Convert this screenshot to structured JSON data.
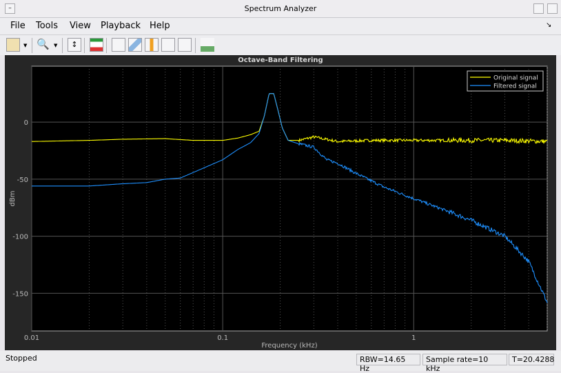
{
  "window": {
    "title": "Spectrum Analyzer"
  },
  "menu": [
    "File",
    "Tools",
    "View",
    "Playback",
    "Help"
  ],
  "toolbar": {
    "icons": [
      "settings-icon",
      "zoom-icon",
      "scale-axes-icon",
      "spectrum-settings-icon",
      "triggers-icon",
      "measurements-icon",
      "channel-measurements-icon",
      "distortion-icon",
      "spectral-mask-icon",
      "generate-script-icon"
    ]
  },
  "chart_data": {
    "type": "line",
    "title": "Octave-Band Filtering",
    "xlabel": "Frequency (kHz)",
    "ylabel": "dBm",
    "xscale": "log",
    "xlim": [
      0.01,
      5
    ],
    "ylim": [
      -183,
      49
    ],
    "xticks": [
      {
        "v": 0.01,
        "label": "0.01"
      },
      {
        "v": 0.1,
        "label": "0.1"
      },
      {
        "v": 1,
        "label": "1"
      }
    ],
    "yticks": [
      {
        "v": 0,
        "label": "0"
      },
      {
        "v": -50,
        "label": "-50"
      },
      {
        "v": -100,
        "label": "-100"
      },
      {
        "v": -150,
        "label": "-150"
      }
    ],
    "grid": true,
    "legend": "top-right",
    "series": [
      {
        "name": "Original signal",
        "color": "#ffff00",
        "x": [
          0.01,
          0.02,
          0.03,
          0.05,
          0.07,
          0.1,
          0.12,
          0.14,
          0.155,
          0.165,
          0.175,
          0.185,
          0.195,
          0.205,
          0.22,
          0.25,
          0.3,
          0.4,
          0.6,
          1,
          2,
          3,
          5
        ],
        "y": [
          -17,
          -16,
          -15,
          -14.5,
          -16,
          -16,
          -14,
          -11,
          -8,
          5,
          25,
          25,
          10,
          -5,
          -16,
          -16,
          -13,
          -17,
          -16,
          -16,
          -16,
          -16,
          -17
        ]
      },
      {
        "name": "Filtered signal",
        "color": "#1e90ff",
        "x": [
          0.01,
          0.02,
          0.03,
          0.04,
          0.05,
          0.06,
          0.08,
          0.1,
          0.12,
          0.14,
          0.155,
          0.165,
          0.175,
          0.185,
          0.195,
          0.205,
          0.22,
          0.25,
          0.3,
          0.35,
          0.4,
          0.5,
          0.7,
          1,
          1.5,
          2,
          3,
          4,
          5
        ],
        "y": [
          -56,
          -56,
          -54,
          -53,
          -50,
          -49,
          -40,
          -33,
          -24,
          -18,
          -10,
          5,
          25,
          25,
          10,
          -5,
          -16,
          -19,
          -22,
          -33,
          -36,
          -45,
          -57,
          -67,
          -78,
          -86,
          -100,
          -122,
          -158
        ]
      }
    ]
  },
  "status": {
    "state": "Stopped",
    "rbw": "RBW=14.65 Hz",
    "sample_rate": "Sample rate=10 kHz",
    "time": "T=20.4288"
  }
}
